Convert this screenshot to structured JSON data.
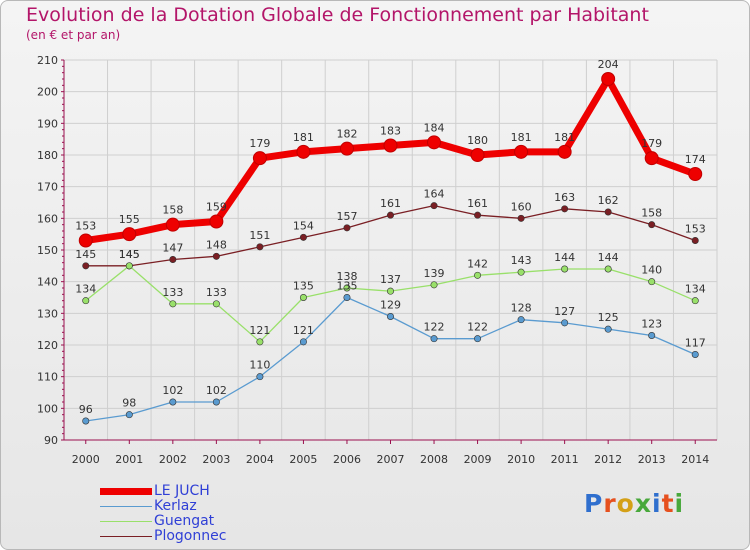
{
  "title": "Evolution de la Dotation Globale de Fonctionnement par Habitant",
  "subtitle": "(en € et par an)",
  "logo_text": "Proxiti",
  "colors": {
    "title": "#b31569",
    "axis": "#9a0f4e",
    "grid": "#cfcfcf",
    "legend_text": "#2f3fd6"
  },
  "chart_data": {
    "type": "line",
    "title": "Evolution de la Dotation Globale de Fonctionnement par Habitant",
    "subtitle": "(en € et par an)",
    "xlabel": "",
    "ylabel": "",
    "x": [
      2000,
      2001,
      2002,
      2003,
      2004,
      2005,
      2006,
      2007,
      2008,
      2009,
      2010,
      2011,
      2012,
      2013,
      2014
    ],
    "ylim": [
      90,
      210
    ],
    "yticks": [
      90,
      100,
      110,
      120,
      130,
      140,
      150,
      160,
      170,
      180,
      190,
      200,
      210
    ],
    "grid": true,
    "legend_position": "bottom-left",
    "series": [
      {
        "name": "Plogonnec",
        "color": "#7a1f24",
        "values": [
          145,
          145,
          147,
          148,
          151,
          154,
          157,
          161,
          164,
          161,
          160,
          163,
          162,
          158,
          153
        ]
      },
      {
        "name": "Guengat",
        "color": "#99e06a",
        "values": [
          134,
          145,
          133,
          133,
          121,
          135,
          138,
          137,
          139,
          142,
          143,
          144,
          144,
          140,
          134
        ]
      },
      {
        "name": "Kerlaz",
        "color": "#5a9bd0",
        "values": [
          96,
          98,
          102,
          102,
          110,
          121,
          135,
          129,
          122,
          122,
          128,
          127,
          125,
          123,
          117
        ]
      },
      {
        "name": "LE JUCH",
        "color": "#ee0000",
        "values": [
          153,
          155,
          158,
          159,
          179,
          181,
          182,
          183,
          184,
          180,
          181,
          181,
          204,
          179,
          174
        ]
      }
    ]
  }
}
